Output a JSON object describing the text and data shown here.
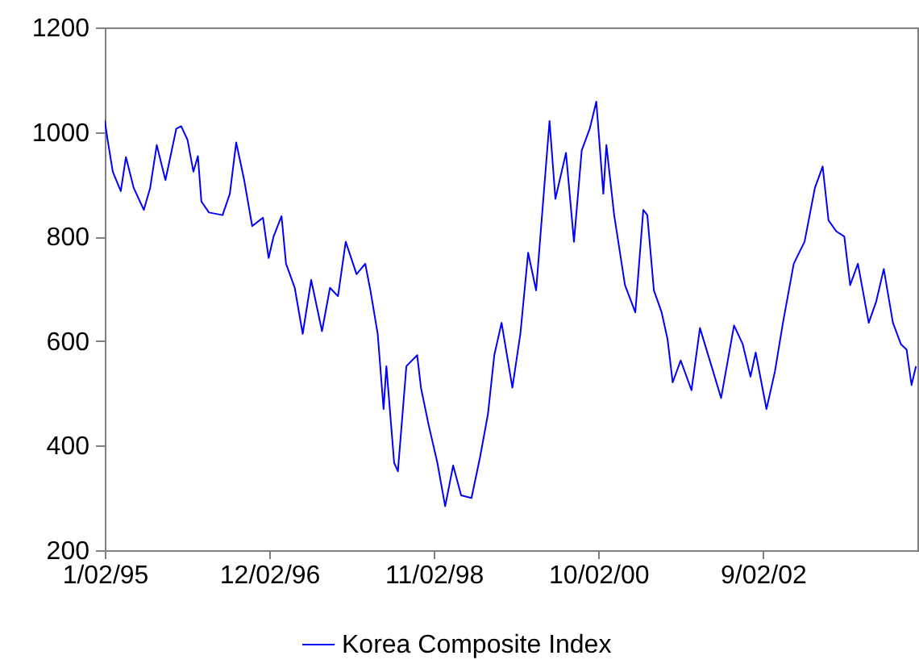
{
  "chart_data": {
    "type": "line",
    "x": [
      "1995-01-02",
      "1995-01-14",
      "1995-02-05",
      "1995-03-11",
      "1995-04-02",
      "1995-05-05",
      "1995-06-17",
      "1995-07-14",
      "1995-08-11",
      "1995-09-17",
      "1995-11-02",
      "1995-11-23",
      "1995-12-20",
      "1996-01-14",
      "1996-02-02",
      "1996-02-17",
      "1996-03-20",
      "1996-05-17",
      "1996-06-17",
      "1996-07-14",
      "1996-08-17",
      "1996-09-20",
      "1996-11-05",
      "1996-11-29",
      "1996-12-20",
      "1997-01-23",
      "1997-02-11",
      "1997-03-20",
      "1997-04-23",
      "1997-05-29",
      "1997-07-14",
      "1997-08-17",
      "1997-09-20",
      "1997-10-23",
      "1997-12-08",
      "1998-01-14",
      "1998-02-05",
      "1998-03-08",
      "1998-04-02",
      "1998-04-14",
      "1998-05-17",
      "1998-06-02",
      "1998-07-08",
      "1998-08-23",
      "1998-09-08",
      "1998-10-11",
      "1998-11-17",
      "1998-12-20",
      "1999-01-23",
      "1999-02-26",
      "1999-04-11",
      "1999-05-17",
      "1999-06-20",
      "1999-07-17",
      "1999-08-17",
      "1999-10-02",
      "1999-11-05",
      "1999-12-08",
      "2000-01-11",
      "2000-02-08",
      "2000-03-08",
      "2000-04-02",
      "2000-05-17",
      "2000-06-20",
      "2000-07-23",
      "2000-08-26",
      "2000-09-23",
      "2000-10-23",
      "2000-11-05",
      "2000-12-08",
      "2001-01-23",
      "2001-03-08",
      "2001-04-11",
      "2001-04-28",
      "2001-05-26",
      "2001-06-28",
      "2001-07-23",
      "2001-08-14",
      "2001-09-17",
      "2001-11-02",
      "2001-12-08",
      "2002-02-02",
      "2002-03-08",
      "2002-05-02",
      "2002-06-08",
      "2002-07-11",
      "2002-08-02",
      "2002-09-17",
      "2002-10-23",
      "2002-11-26",
      "2003-01-11",
      "2003-02-26",
      "2003-04-11",
      "2003-05-14",
      "2003-06-08",
      "2003-07-11",
      "2003-08-14",
      "2003-09-08",
      "2003-10-11",
      "2003-11-26",
      "2003-12-28",
      "2004-01-29",
      "2004-03-08",
      "2004-04-11",
      "2004-05-05",
      "2004-05-26",
      "2004-06-14"
    ],
    "series": [
      {
        "name": "Korea Composite Index",
        "color": "#0000ff",
        "values": [
          1022,
          985,
          924,
          887,
          952,
          893,
          851,
          893,
          975,
          908,
          1006,
          1011,
          985,
          924,
          954,
          867,
          846,
          841,
          882,
          980,
          908,
          820,
          836,
          759,
          800,
          839,
          748,
          702,
          614,
          717,
          619,
          702,
          686,
          790,
          728,
          748,
          697,
          614,
          470,
          552,
          367,
          351,
          552,
          573,
          511,
          439,
          367,
          284,
          362,
          305,
          300,
          377,
          460,
          573,
          635,
          511,
          614,
          769,
          697,
          857,
          1021,
          872,
          960,
          790,
          965,
          1006,
          1058,
          882,
          975,
          841,
          707,
          655,
          851,
          841,
          697,
          655,
          604,
          521,
          563,
          506,
          625,
          542,
          491,
          630,
          594,
          532,
          578,
          470,
          542,
          635,
          748,
          790,
          893,
          934,
          831,
          810,
          800,
          707,
          748,
          635,
          676,
          738,
          635,
          594,
          584,
          516,
          552
        ]
      }
    ],
    "xlim": [
      "1995-01-02",
      "2004-06-20"
    ],
    "xticks": [
      {
        "value": "1995-01-02",
        "label": "1/02/95"
      },
      {
        "value": "1996-12-02",
        "label": "12/02/96"
      },
      {
        "value": "1998-11-02",
        "label": "11/02/98"
      },
      {
        "value": "2000-10-02",
        "label": "10/02/00"
      },
      {
        "value": "2002-09-02",
        "label": "9/02/02"
      }
    ],
    "ylim": [
      200,
      1200
    ],
    "yticks": [
      200,
      400,
      600,
      800,
      1000,
      1200
    ],
    "legend": "bottom",
    "line_style": "solid",
    "marker": "none"
  }
}
